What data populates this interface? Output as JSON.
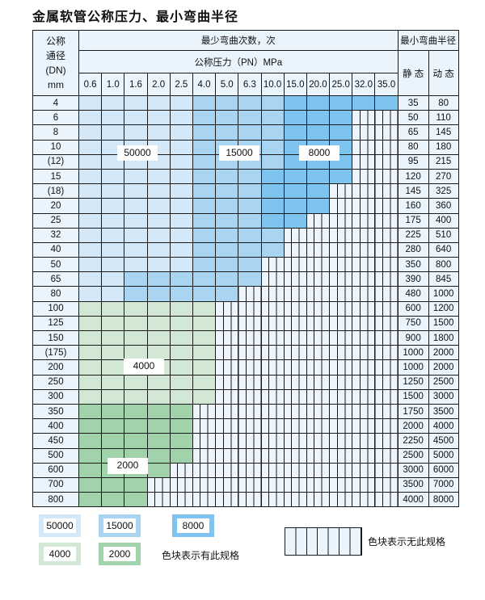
{
  "title": "金属软管公称压力、最小弯曲半径",
  "header": {
    "dn_label": [
      "公称",
      "通径",
      "(DN)",
      "mm"
    ],
    "cycles_label": "最少弯曲次数，次",
    "pressure_label": "公称压力（PN）MPa",
    "radius_label": "最小弯曲半径",
    "static_label": "静 态",
    "dynamic_label": "动 态",
    "pressures": [
      "0.6",
      "1.0",
      "1.6",
      "2.0",
      "2.5",
      "4.0",
      "5.0",
      "6.3",
      "10.0",
      "15.0",
      "20.0",
      "25.0",
      "32.0",
      "35.0"
    ]
  },
  "colors": {
    "a": "#d4e8f8",
    "b": "#a9d5f3",
    "c": "#7fc4ee",
    "d": "#d2e8d4",
    "e": "#a0d2ab",
    "x": "hatched"
  },
  "rows": [
    {
      "dn": "4",
      "cells": "aaaaabbbbccccc",
      "static": "35",
      "dynamic": "80"
    },
    {
      "dn": "6",
      "cells": "aaaaabbbbcccxx",
      "static": "50",
      "dynamic": "110"
    },
    {
      "dn": "8",
      "cells": "aaaaabbbbcccxx",
      "static": "65",
      "dynamic": "145"
    },
    {
      "dn": "10",
      "cells": "aaaaabbbbcccxx",
      "static": "80",
      "dynamic": "180"
    },
    {
      "dn": "(12)",
      "cells": "aaaaabbbbcccxx",
      "static": "95",
      "dynamic": "215"
    },
    {
      "dn": "15",
      "cells": "aaaaabbbccccxx",
      "static": "120",
      "dynamic": "270"
    },
    {
      "dn": "(18)",
      "cells": "aaaaabbbcccxxx",
      "static": "145",
      "dynamic": "325"
    },
    {
      "dn": "20",
      "cells": "aaaaabbbcccxxx",
      "static": "160",
      "dynamic": "360"
    },
    {
      "dn": "25",
      "cells": "aaaaabbbccxxxx",
      "static": "175",
      "dynamic": "400"
    },
    {
      "dn": "32",
      "cells": "aaaaabbbbxxxxx",
      "static": "225",
      "dynamic": "510"
    },
    {
      "dn": "40",
      "cells": "aaaaabbbbxxxxx",
      "static": "280",
      "dynamic": "640"
    },
    {
      "dn": "50",
      "cells": "aaaaabbbxxxxxx",
      "static": "350",
      "dynamic": "800"
    },
    {
      "dn": "65",
      "cells": "aabbbbbbxxxxxx",
      "static": "390",
      "dynamic": "845"
    },
    {
      "dn": "80",
      "cells": "aabbbbbxxxxxxx",
      "static": "480",
      "dynamic": "1000"
    },
    {
      "dn": "100",
      "cells": "ddddddxxxxxxxx",
      "static": "600",
      "dynamic": "1200"
    },
    {
      "dn": "125",
      "cells": "ddddddxxxxxxxx",
      "static": "750",
      "dynamic": "1500"
    },
    {
      "dn": "150",
      "cells": "ddddddxxxxxxxx",
      "static": "900",
      "dynamic": "1800"
    },
    {
      "dn": "(175)",
      "cells": "ddddddxxxxxxxx",
      "static": "1000",
      "dynamic": "2000"
    },
    {
      "dn": "200",
      "cells": "ddddddxxxxxxxx",
      "static": "1000",
      "dynamic": "2000"
    },
    {
      "dn": "250",
      "cells": "ddddddxxxxxxxx",
      "static": "1250",
      "dynamic": "2500"
    },
    {
      "dn": "300",
      "cells": "ddddddxxxxxxxx",
      "static": "1500",
      "dynamic": "3000"
    },
    {
      "dn": "350",
      "cells": "eeeeexxxxxxxxx",
      "static": "1750",
      "dynamic": "3500"
    },
    {
      "dn": "400",
      "cells": "eeeeexxxxxxxxx",
      "static": "2000",
      "dynamic": "4000"
    },
    {
      "dn": "450",
      "cells": "eeeeexxxxxxxxx",
      "static": "2250",
      "dynamic": "4500"
    },
    {
      "dn": "500",
      "cells": "eeeeexxxxxxxxx",
      "static": "2500",
      "dynamic": "5000"
    },
    {
      "dn": "600",
      "cells": "eeeexxxxxxxxxx",
      "static": "3000",
      "dynamic": "6000"
    },
    {
      "dn": "700",
      "cells": "eeexxxxxxxxxxx",
      "static": "3500",
      "dynamic": "7000"
    },
    {
      "dn": "800",
      "cells": "eeexxxxxxxxxxx",
      "static": "4000",
      "dynamic": "8000"
    }
  ],
  "region_labels": {
    "a": "50000",
    "b": "15000",
    "c": "8000",
    "d": "4000",
    "e": "2000"
  },
  "legend": {
    "items": [
      "50000",
      "15000",
      "8000",
      "4000",
      "2000"
    ],
    "has_spec_note": "色块表示有此规格",
    "no_spec_note": "色块表示无此规格"
  }
}
